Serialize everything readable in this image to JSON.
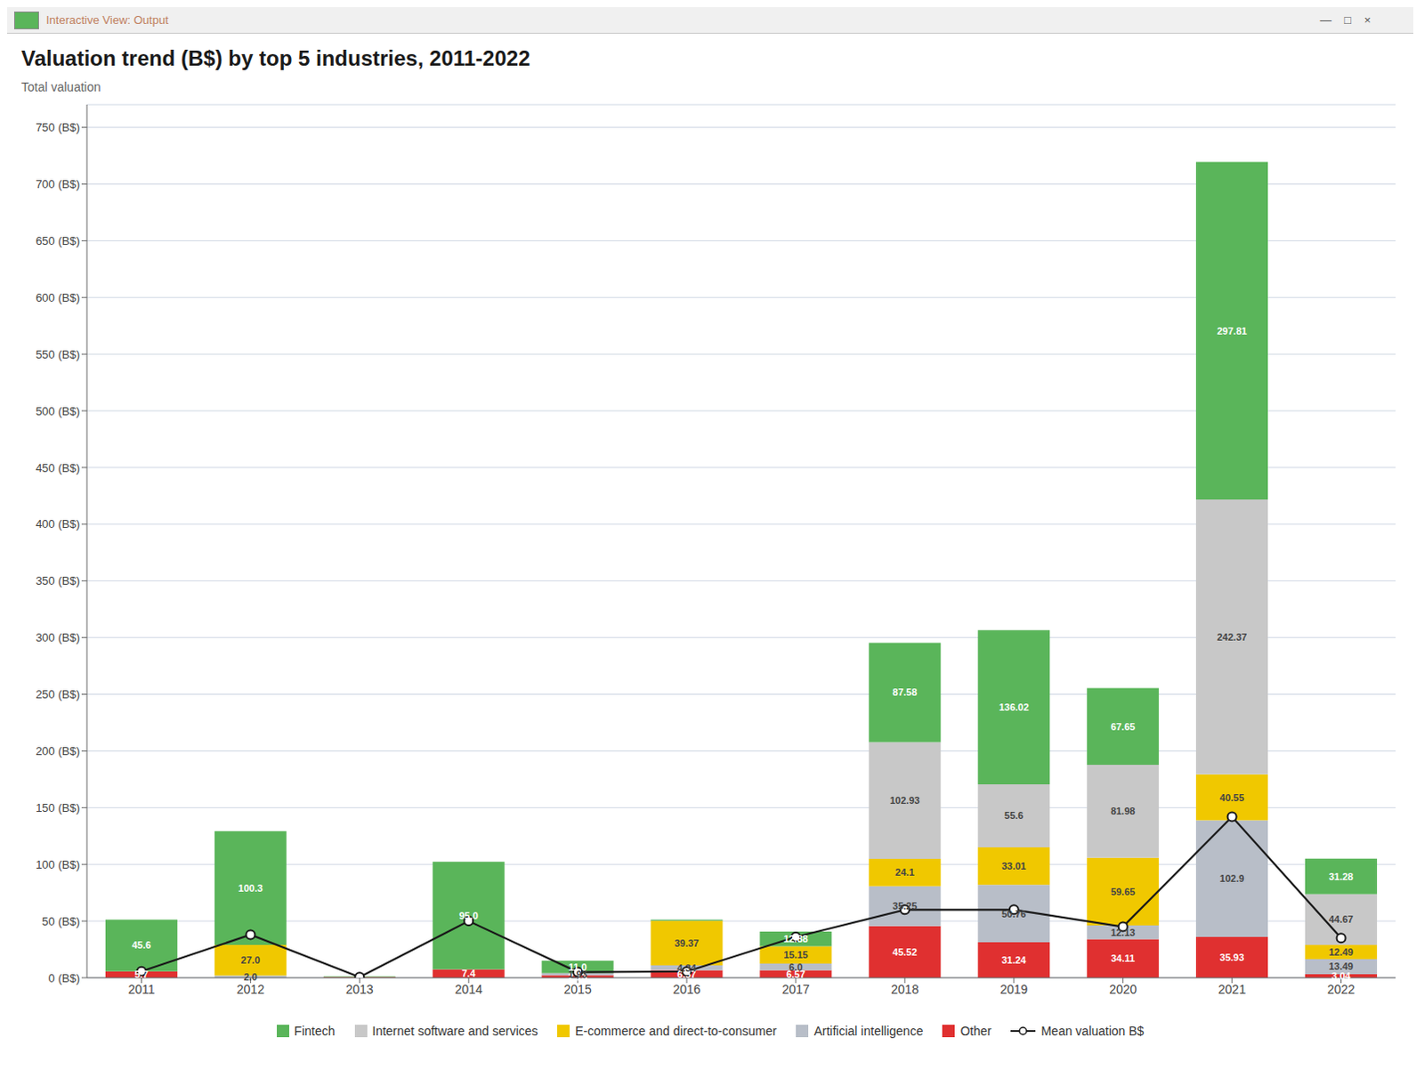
{
  "chart_data": {
    "type": "bar",
    "stacked": true,
    "title": "Valuation trend (B$) by top 5 industries, 2011-2022",
    "ylabel": "Total valuation",
    "annotations": [
      "Interactive View: Output",
      "—    □    ×"
    ],
    "categories": [
      "2011",
      "2012",
      "2013",
      "2014",
      "2015",
      "2016",
      "2017",
      "2018",
      "2019",
      "2020",
      "2021",
      "2022"
    ],
    "series": [
      {
        "name": "Fintech",
        "color": "#5ab55a",
        "values": [
          45.6,
          100.3,
          0.6,
          95.0,
          11.0,
          1.0,
          12.88,
          87.58,
          136.02,
          67.65,
          297.81,
          31.28
        ],
        "value_labels": [
          "45.6",
          "100.3",
          null,
          "95.0",
          "11.0",
          null,
          "12.88",
          "87.58",
          "136.02",
          "67.65",
          "297.81",
          "31.28"
        ]
      },
      {
        "name": "Internet software and services",
        "color": "#c8c8c8",
        "values": [
          0.0,
          0.0,
          0.0,
          0.0,
          0.0,
          0.0,
          0.0,
          102.93,
          55.6,
          81.98,
          242.37,
          44.67
        ],
        "value_labels": [
          null,
          null,
          null,
          null,
          null,
          null,
          null,
          "102.93",
          "55.6",
          "81.98",
          "242.37",
          "44.67"
        ]
      },
      {
        "name": "E-commerce and direct-to-consumer",
        "color": "#f0c800",
        "values": [
          0.0,
          27.0,
          0.0,
          0.0,
          0.0,
          39.37,
          15.15,
          24.1,
          33.01,
          59.65,
          40.55,
          12.49
        ],
        "value_labels": [
          null,
          "27.0",
          null,
          null,
          null,
          "39.37",
          "15.15",
          "24.1",
          "33.01",
          "59.65",
          "40.55",
          "12.49"
        ]
      },
      {
        "name": "Artificial intelligence",
        "color": "#b8bec8",
        "values": [
          0.0,
          2.0,
          0.0,
          0.0,
          1.93,
          4.34,
          6.0,
          35.25,
          50.76,
          12.13,
          102.9,
          13.49
        ],
        "value_labels": [
          null,
          "2.0",
          null,
          null,
          "1.93",
          "4.34",
          "6.0",
          "35.25",
          "50.76",
          "12.13",
          "102.9",
          "13.49"
        ]
      },
      {
        "name": "Other",
        "color": "#e03030",
        "values": [
          5.7,
          0.0,
          0.6,
          7.4,
          2.13,
          6.57,
          6.57,
          45.52,
          31.24,
          34.11,
          35.93,
          3.04
        ],
        "value_labels": [
          "5.7",
          null,
          null,
          "7.4",
          "2.13",
          "6.57",
          "6.57",
          "45.52",
          "31.24",
          "34.11",
          "35.93",
          "3.04"
        ]
      },
      {
        "name": "Mean valuation B$",
        "type": "line",
        "color": "#1a1a1a",
        "marker": "circle",
        "values": [
          5.7,
          38.0,
          0.6,
          50.0,
          5.0,
          5.5,
          36.0,
          60.0,
          60.0,
          45.0,
          142.0,
          35.0
        ]
      }
    ],
    "ylim": [
      0,
      770
    ],
    "yticks": [
      {
        "value": 0,
        "label": "0 (B$)"
      },
      {
        "value": 50,
        "label": "50 (B$)"
      },
      {
        "value": 100,
        "label": "100 (B$)"
      },
      {
        "value": 150,
        "label": "150 (B$)"
      },
      {
        "value": 200,
        "label": "200 (B$)"
      },
      {
        "value": 250,
        "label": "250 (B$)"
      },
      {
        "value": 300,
        "label": "300 (B$)"
      },
      {
        "value": 350,
        "label": "350 (B$)"
      },
      {
        "value": 400,
        "label": "400 (B$)"
      },
      {
        "value": 450,
        "label": "450 (B$)"
      },
      {
        "value": 500,
        "label": "500 (B$)"
      },
      {
        "value": 550,
        "label": "550 (B$)"
      },
      {
        "value": 600,
        "label": "600 (B$)"
      },
      {
        "value": 650,
        "label": "650 (B$)"
      },
      {
        "value": 700,
        "label": "700 (B$)"
      },
      {
        "value": 750,
        "label": "750 (B$)"
      }
    ],
    "grid": true,
    "legend": "bottom",
    "data_labels": true
  }
}
